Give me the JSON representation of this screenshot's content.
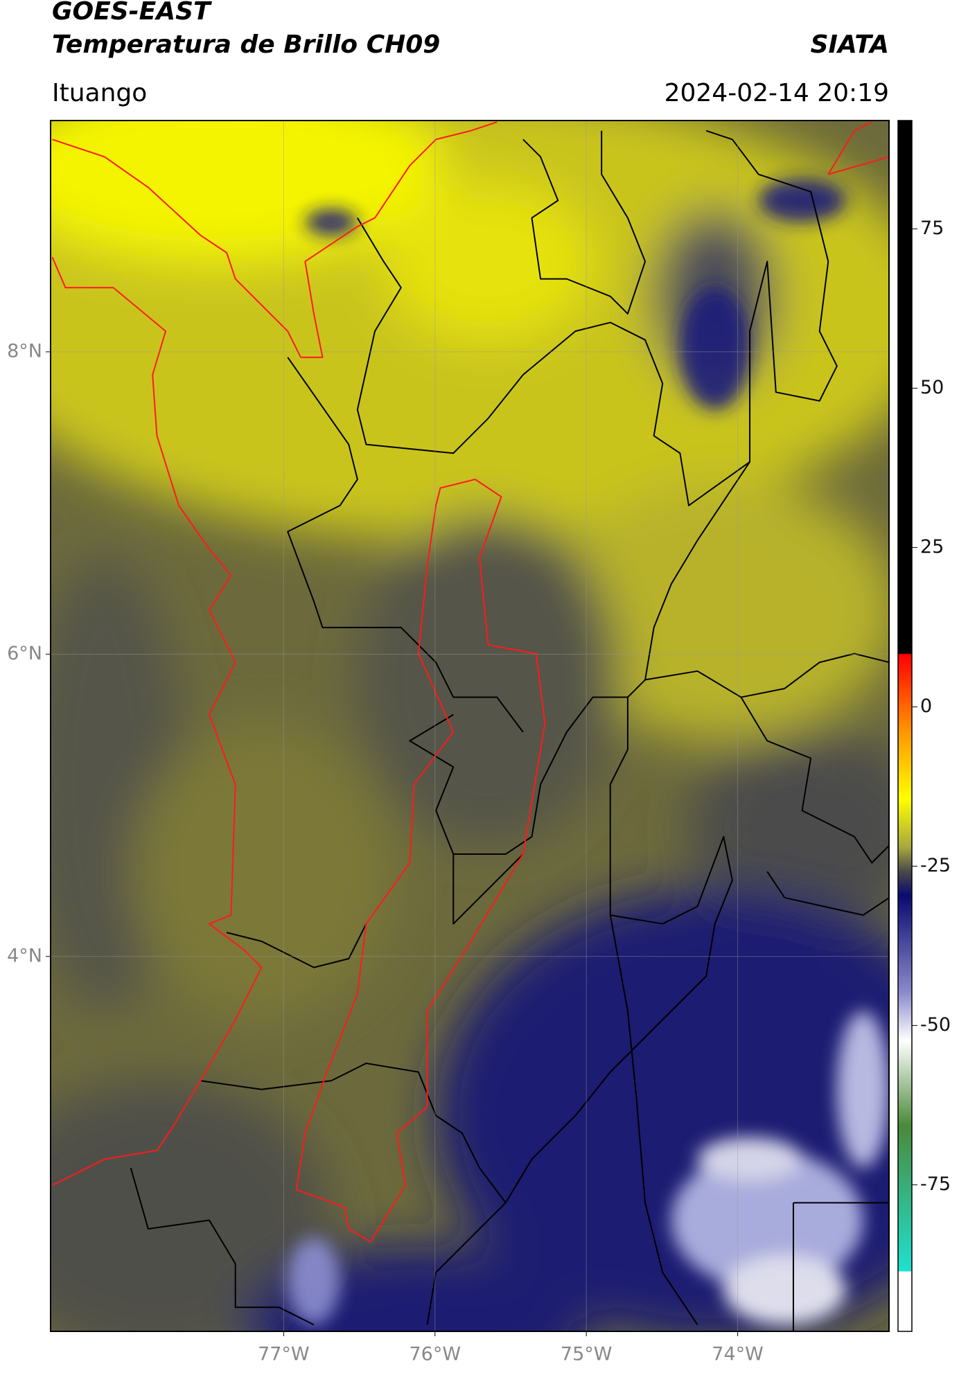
{
  "header": {
    "title": "GOES-EAST",
    "subtitle": "Temperatura de Brillo CH09",
    "brand": "SIATA",
    "location": "Ituango",
    "timestamp": "2024-02-14 20:19"
  },
  "map": {
    "xlim": [
      -78.54,
      -73.0
    ],
    "ylim": [
      1.52,
      9.53
    ],
    "xticks": [
      {
        "value": -77,
        "label": "77°W"
      },
      {
        "value": -76,
        "label": "76°W"
      },
      {
        "value": -75,
        "label": "75°W"
      },
      {
        "value": -74,
        "label": "74°W"
      }
    ],
    "yticks": [
      {
        "value": 4,
        "label": "4°N"
      },
      {
        "value": 6,
        "label": "6°N"
      },
      {
        "value": 8,
        "label": "8°N"
      }
    ],
    "grid": true
  },
  "colorbar": {
    "lim": [
      -98,
      92
    ],
    "ticks": [
      -75,
      -50,
      -25,
      0,
      25,
      50,
      75
    ]
  }
}
